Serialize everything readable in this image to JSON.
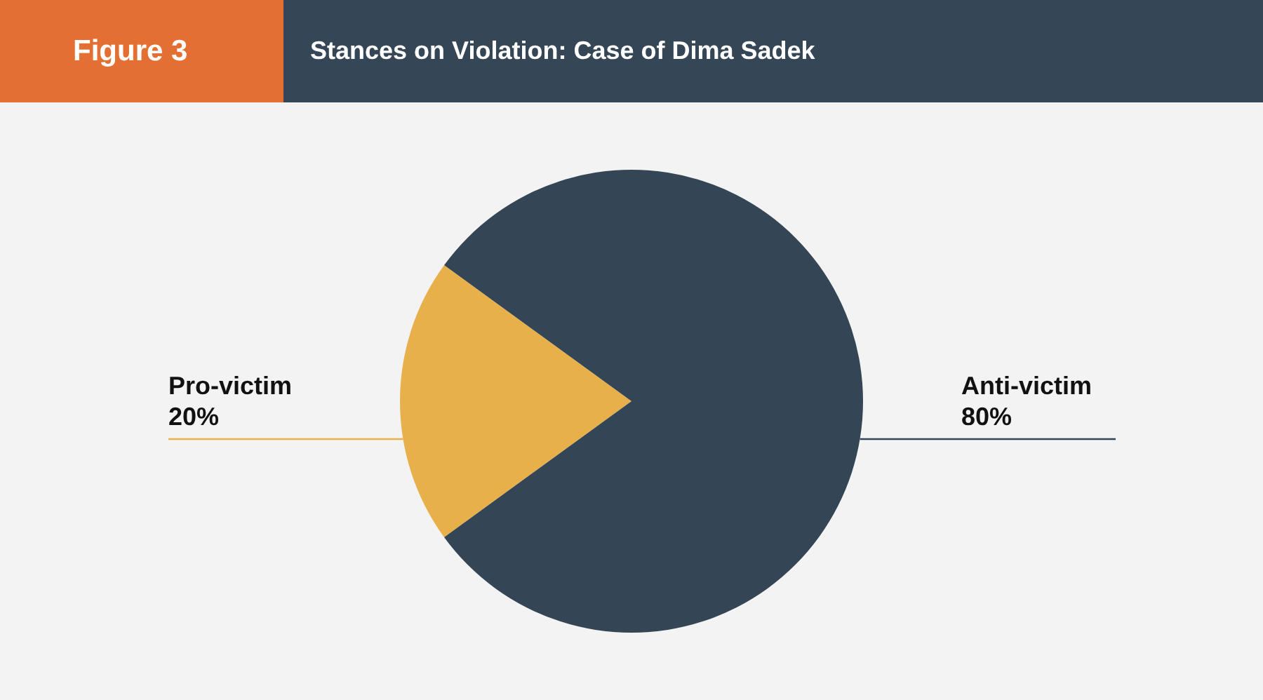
{
  "chart_data": {
    "type": "pie",
    "title": "Stances on Violation: Case of Dima Sadek",
    "annotations": [
      "Figure 3"
    ],
    "categories": [
      "Pro-victim",
      "Anti-victim"
    ],
    "values": [
      20,
      80
    ],
    "colors": [
      "#e8b04a",
      "#344556"
    ],
    "value_labels": [
      "20%",
      "80%"
    ],
    "legend": false
  }
}
